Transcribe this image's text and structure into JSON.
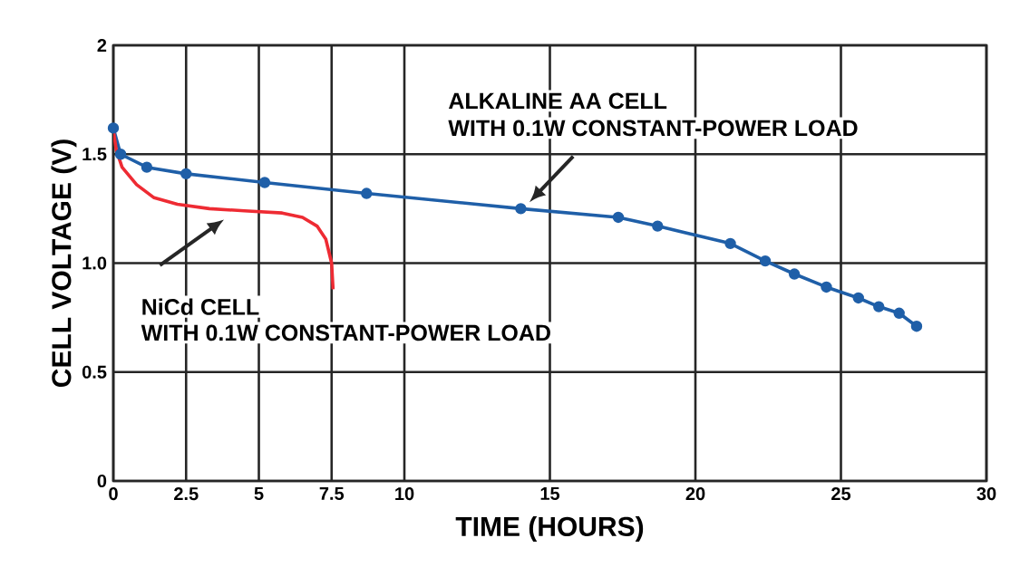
{
  "chart_data": {
    "type": "line",
    "xlabel": "TIME (HOURS)",
    "ylabel": "CELL VOLTAGE (V)",
    "xlim": [
      0,
      30
    ],
    "ylim": [
      0,
      2
    ],
    "xticks": [
      0,
      2.5,
      5,
      7.5,
      10,
      15,
      20,
      25,
      30
    ],
    "yticks": [
      0,
      0.5,
      {
        "value": 1,
        "label": "1.0"
      },
      1.5,
      2
    ],
    "grid": true,
    "series": [
      {
        "color": "#1f5fa8",
        "marker": "circle",
        "x": [
          0,
          0.25,
          1.15,
          2.5,
          5.2,
          8.7,
          14.0,
          17.35,
          18.7,
          21.2,
          22.4,
          23.4,
          24.5,
          25.6,
          26.3,
          27.0,
          27.6
        ],
        "values": [
          1.62,
          1.5,
          1.44,
          1.41,
          1.37,
          1.32,
          1.25,
          1.21,
          1.17,
          1.09,
          1.01,
          0.95,
          0.89,
          0.84,
          0.8,
          0.77,
          0.71
        ]
      },
      {
        "color": "#ee2b33",
        "marker": "none",
        "x": [
          0,
          0.1,
          0.3,
          0.8,
          1.4,
          2.2,
          3.3,
          4.5,
          5.8,
          6.5,
          7.0,
          7.3,
          7.5,
          7.55
        ],
        "values": [
          1.61,
          1.52,
          1.44,
          1.36,
          1.3,
          1.27,
          1.25,
          1.24,
          1.23,
          1.21,
          1.17,
          1.11,
          1.0,
          0.88
        ]
      }
    ],
    "annotations": [
      "ALKALINE AA CELL",
      "WITH 0.1W CONSTANT-POWER LOAD",
      "NiCd CELL",
      "WITH 0.1W CONSTANT-POWER LOAD"
    ]
  }
}
